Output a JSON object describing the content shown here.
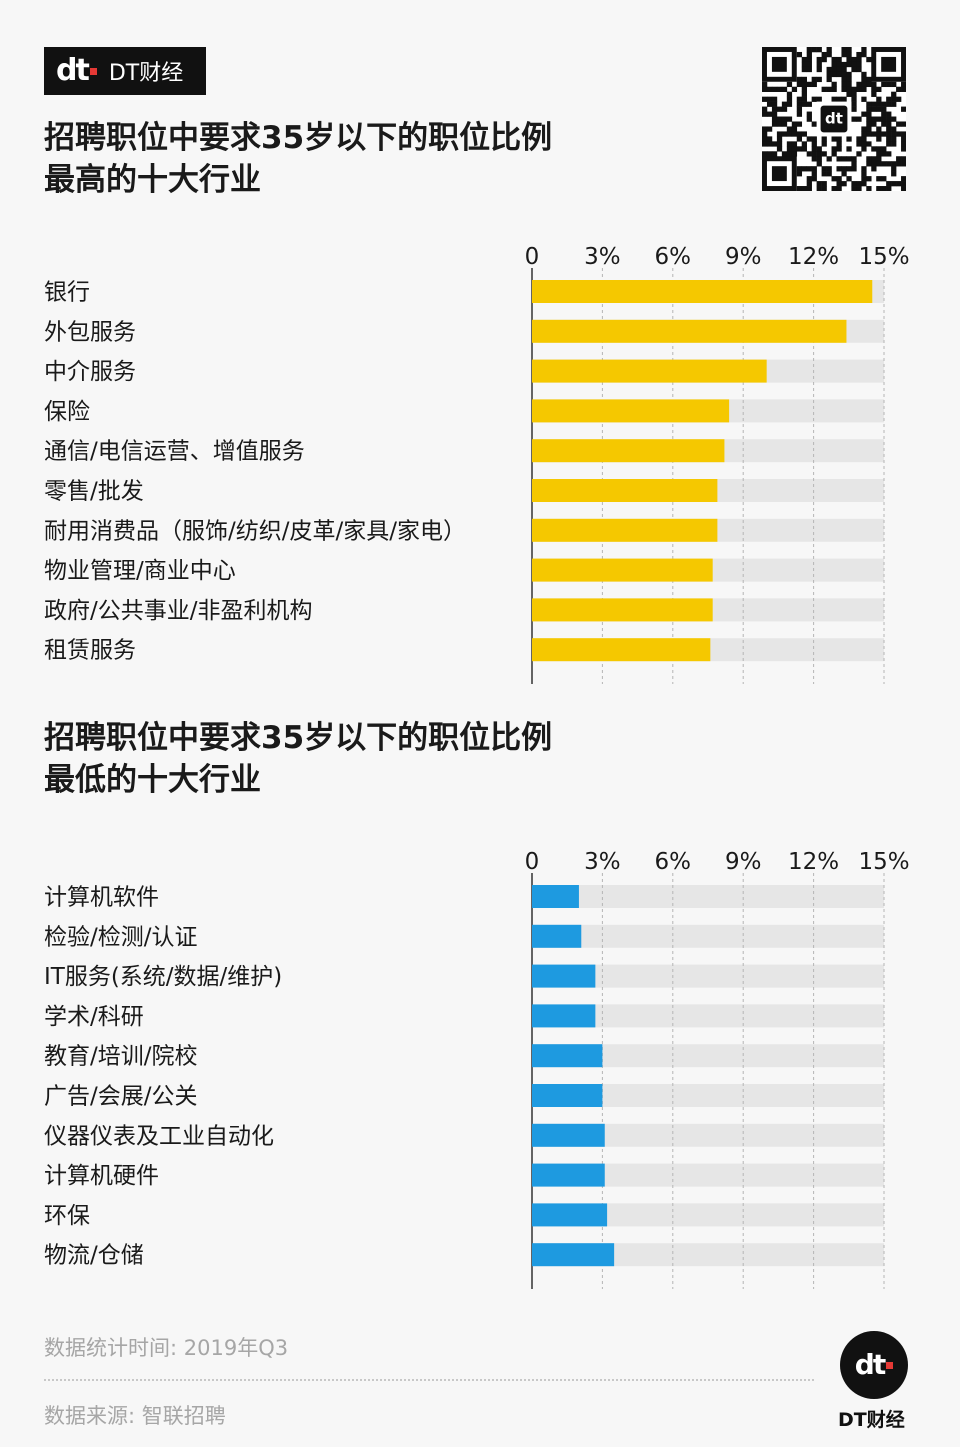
{
  "brand": {
    "mark": "dt",
    "name": "DT财经"
  },
  "qr": {
    "center_label": "dt"
  },
  "chart_data": [
    {
      "type": "bar",
      "orientation": "horizontal",
      "title_lines": [
        "招聘职位中要求35岁以下的职位比例",
        "最高的十大行业"
      ],
      "xticks": [
        "0",
        "3%",
        "6%",
        "9%",
        "12%",
        "15%"
      ],
      "xlim": [
        0,
        15
      ],
      "unit": "%",
      "bar_color": "#f5c800",
      "categories": [
        "银行",
        "外包服务",
        "中介服务",
        "保险",
        "通信/电信运营、增值服务",
        "零售/批发",
        "耐用消费品（服饰/纺织/皮革/家具/家电）",
        "物业管理/商业中心",
        "政府/公共事业/非盈利机构",
        "租赁服务"
      ],
      "values": [
        14.5,
        13.4,
        10.0,
        8.4,
        8.2,
        7.9,
        7.9,
        7.7,
        7.7,
        7.6
      ]
    },
    {
      "type": "bar",
      "orientation": "horizontal",
      "title_lines": [
        "招聘职位中要求35岁以下的职位比例",
        "最低的十大行业"
      ],
      "xticks": [
        "0",
        "3%",
        "6%",
        "9%",
        "12%",
        "15%"
      ],
      "xlim": [
        0,
        15
      ],
      "unit": "%",
      "bar_color": "#1e9ae0",
      "categories": [
        "计算机软件",
        "检验/检测/认证",
        "IT服务(系统/数据/维护)",
        "学术/科研",
        "教育/培训/院校",
        "广告/会展/公关",
        "仪器仪表及工业自动化",
        "计算机硬件",
        "环保",
        "物流/仓储"
      ],
      "values": [
        2.0,
        2.1,
        2.7,
        2.7,
        3.0,
        3.0,
        3.1,
        3.1,
        3.2,
        3.5
      ]
    }
  ],
  "footer": {
    "period": "数据统计时间: 2019年Q3",
    "source": "数据来源: 智联招聘",
    "brand": "DT财经"
  }
}
